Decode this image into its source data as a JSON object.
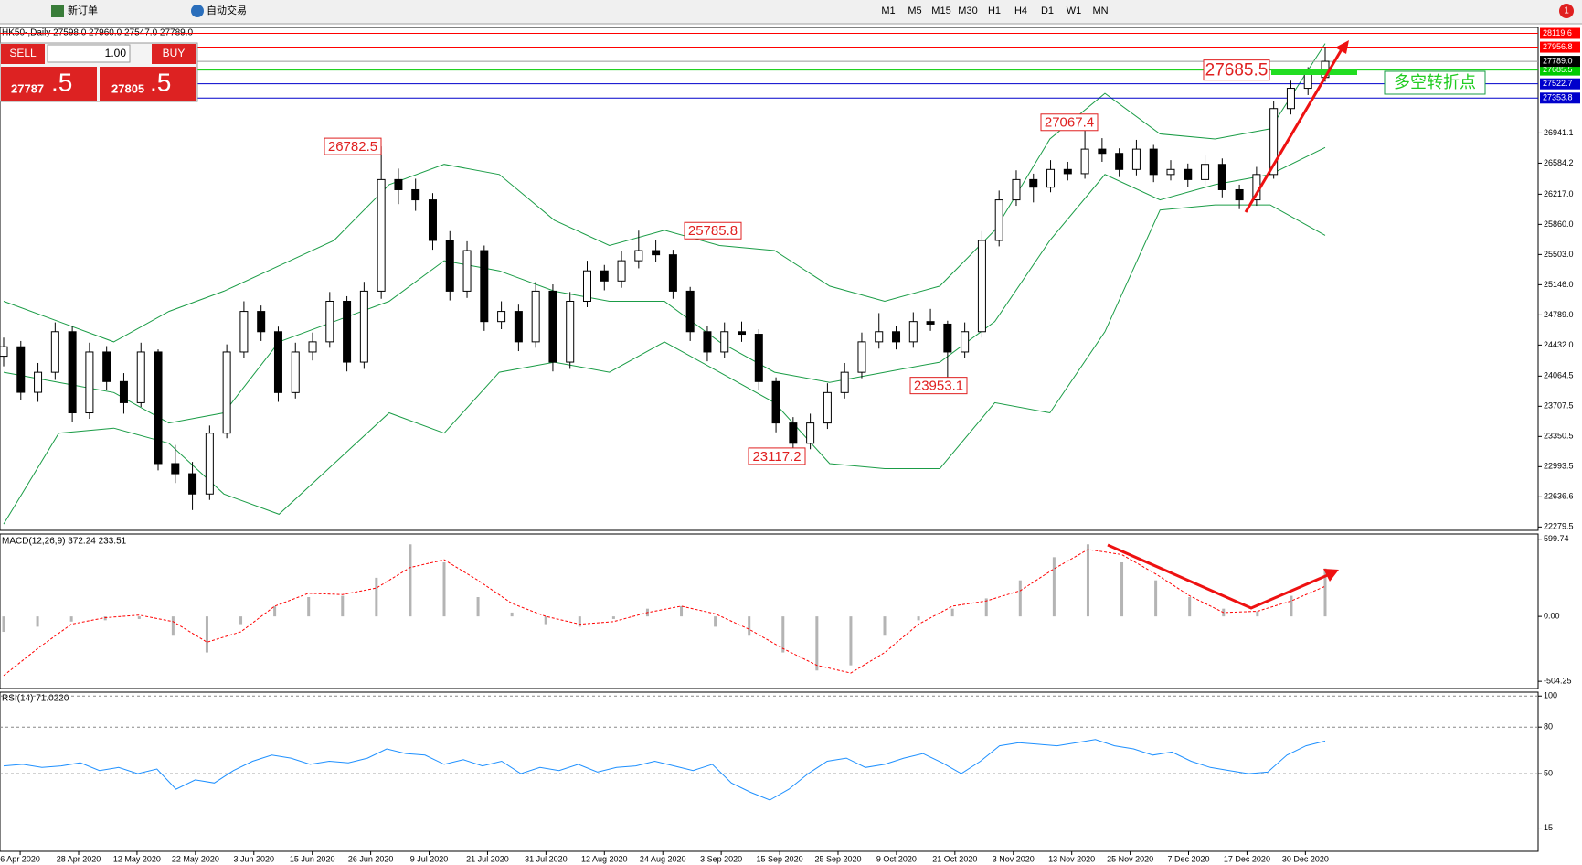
{
  "toolbar": {
    "buttons": [
      "新订单",
      "自动交易"
    ],
    "timeframes": [
      "M1",
      "M5",
      "M15",
      "M30",
      "H1",
      "H4",
      "D1",
      "W1",
      "MN"
    ],
    "notifications": "1"
  },
  "trade_panel": {
    "sell": "SELL",
    "buy": "BUY",
    "volume": "1.00",
    "bid_main": "27787",
    "bid_frac": ".5",
    "ask_main": "27805",
    "ask_frac": ".5"
  },
  "time_axis": {
    "labels": [
      "6 Apr 2020",
      "28 Apr 2020",
      "12 May 2020",
      "22 May 2020",
      "3 Jun 2020",
      "15 Jun 2020",
      "26 Jun 2020",
      "9 Jul 2020",
      "21 Jul 2020",
      "31 Jul 2020",
      "12 Aug 2020",
      "24 Aug 2020",
      "3 Sep 2020",
      "15 Sep 2020",
      "25 Sep 2020",
      "9 Oct 2020",
      "21 Oct 2020",
      "3 Nov 2020",
      "13 Nov 2020",
      "25 Nov 2020",
      "7 Dec 2020",
      "17 Dec 2020",
      "30 Dec 2020"
    ]
  },
  "chart_data": [
    {
      "type": "candlestick",
      "title": "HK50-,Daily  27598.0 27960.0 27547.0 27789.0",
      "candles": [
        [
          24300,
          24520,
          24180,
          24412
        ],
        [
          24412,
          24480,
          23780,
          23873
        ],
        [
          23873,
          24220,
          23760,
          24110
        ],
        [
          24110,
          24700,
          24020,
          24590
        ],
        [
          24590,
          24650,
          23520,
          23630
        ],
        [
          23630,
          24460,
          23560,
          24350
        ],
        [
          24350,
          24420,
          23900,
          24000
        ],
        [
          24000,
          24100,
          23620,
          23750
        ],
        [
          23750,
          24460,
          23700,
          24350
        ],
        [
          24350,
          24380,
          22950,
          23030
        ],
        [
          23030,
          23250,
          22800,
          22910
        ],
        [
          22910,
          23050,
          22480,
          22670
        ],
        [
          22670,
          23480,
          22600,
          23390
        ],
        [
          23390,
          24440,
          23330,
          24350
        ],
        [
          24350,
          24950,
          24280,
          24830
        ],
        [
          24830,
          24900,
          24480,
          24590
        ],
        [
          24590,
          24650,
          23760,
          23870
        ],
        [
          23870,
          24460,
          23800,
          24350
        ],
        [
          24350,
          24580,
          24250,
          24470
        ],
        [
          24470,
          25060,
          24400,
          24950
        ],
        [
          24950,
          25010,
          24120,
          24230
        ],
        [
          24230,
          25180,
          24150,
          25070
        ],
        [
          25070,
          26782.5,
          24980,
          26390
        ],
        [
          26390,
          26520,
          26100,
          26270
        ],
        [
          26270,
          26400,
          26020,
          26150
        ],
        [
          26150,
          26230,
          25560,
          25670
        ],
        [
          25670,
          25780,
          24960,
          25070
        ],
        [
          25070,
          25660,
          24990,
          25550
        ],
        [
          25550,
          25610,
          24600,
          24710
        ],
        [
          24710,
          24950,
          24620,
          24830
        ],
        [
          24830,
          24910,
          24360,
          24470
        ],
        [
          24470,
          25180,
          24400,
          25070
        ],
        [
          25070,
          25150,
          24120,
          24230
        ],
        [
          24230,
          25060,
          24150,
          24950
        ],
        [
          24950,
          25430,
          24880,
          25310
        ],
        [
          25310,
          25380,
          25080,
          25190
        ],
        [
          25190,
          25540,
          25110,
          25430
        ],
        [
          25430,
          25785.8,
          25340,
          25550
        ],
        [
          25550,
          25680,
          25420,
          25500
        ],
        [
          25500,
          25560,
          24980,
          25070
        ],
        [
          25070,
          25120,
          24480,
          24590
        ],
        [
          24590,
          24660,
          24240,
          24350
        ],
        [
          24350,
          24700,
          24280,
          24590
        ],
        [
          24590,
          24710,
          24470,
          24560
        ],
        [
          24560,
          24620,
          23900,
          24000
        ],
        [
          24000,
          24050,
          23400,
          23510
        ],
        [
          23510,
          23580,
          23117.2,
          23270
        ],
        [
          23270,
          23620,
          23200,
          23510
        ],
        [
          23510,
          23980,
          23440,
          23870
        ],
        [
          23870,
          24220,
          23800,
          24110
        ],
        [
          24110,
          24580,
          24040,
          24470
        ],
        [
          24470,
          24810,
          24390,
          24590
        ],
        [
          24590,
          24660,
          24380,
          24470
        ],
        [
          24470,
          24820,
          24400,
          24710
        ],
        [
          24710,
          24860,
          24600,
          24680
        ],
        [
          24680,
          24720,
          23953.1,
          24350
        ],
        [
          24350,
          24700,
          24280,
          24590
        ],
        [
          24590,
          25780,
          24520,
          25670
        ],
        [
          25670,
          26260,
          25600,
          26150
        ],
        [
          26150,
          26500,
          26080,
          26390
        ],
        [
          26390,
          26460,
          26120,
          26300
        ],
        [
          26300,
          26620,
          26240,
          26510
        ],
        [
          26510,
          26600,
          26380,
          26460
        ],
        [
          26460,
          27067.4,
          26400,
          26750
        ],
        [
          26750,
          26880,
          26600,
          26700
        ],
        [
          26700,
          26760,
          26420,
          26510
        ],
        [
          26510,
          26860,
          26440,
          26750
        ],
        [
          26750,
          26800,
          26360,
          26450
        ],
        [
          26450,
          26620,
          26380,
          26510
        ],
        [
          26510,
          26580,
          26300,
          26390
        ],
        [
          26390,
          26680,
          26320,
          26570
        ],
        [
          26570,
          26640,
          26180,
          26270
        ],
        [
          26270,
          26330,
          26040,
          26150
        ],
        [
          26150,
          26540,
          26080,
          26450
        ],
        [
          26450,
          27320,
          26400,
          27230
        ],
        [
          27230,
          27560,
          27160,
          27470
        ],
        [
          27470,
          27720,
          27390,
          27650
        ],
        [
          27598,
          27960,
          27547,
          27789
        ]
      ],
      "bands": {
        "color": "#1a9c46",
        "upper": [
          24950,
          24710,
          24470,
          24830,
          25070,
          25370,
          25670,
          26330,
          26570,
          26450,
          25910,
          25610,
          25790,
          25610,
          25550,
          25130,
          24950,
          25130,
          25790,
          26870,
          27410,
          26930,
          26870,
          26990,
          28000
        ],
        "middle": [
          24110,
          23990,
          23870,
          23510,
          23630,
          24470,
          24710,
          24950,
          25430,
          25310,
          25070,
          24950,
          24950,
          24470,
          24110,
          23990,
          24110,
          24230,
          24710,
          25670,
          26450,
          26150,
          26330,
          26450,
          26770
        ],
        "lower": [
          22315,
          23390,
          23450,
          23270,
          22670,
          22430,
          23030,
          23630,
          23390,
          24110,
          24230,
          24110,
          24470,
          24110,
          23750,
          23030,
          22970,
          22970,
          23750,
          23630,
          24590,
          26030,
          26090,
          26090,
          25730
        ]
      },
      "ylim": [
        22240,
        28190
      ],
      "yticks": [
        {
          "value": 26941.1,
          "label": "26941.1"
        },
        26584.2,
        {
          "value": 26217,
          "label": "26217.0"
        },
        {
          "value": 25860,
          "label": "25860.0"
        },
        {
          "value": 25503,
          "label": "25503.0"
        },
        {
          "value": 25146,
          "label": "25146.0"
        },
        {
          "value": 24789,
          "label": "24789.0"
        },
        {
          "value": 24432,
          "label": "24432.0"
        },
        24064.5,
        23707.5,
        23350.5,
        22993.5,
        22636.6,
        22279.5
      ],
      "hlines": [
        {
          "value": 28119.6,
          "color": "#ff0000"
        },
        {
          "value": 27956.8,
          "color": "#ff0000"
        },
        {
          "value": 27685.5,
          "color": "#00cc00"
        },
        {
          "value": 27522.7,
          "color": "#0000cc"
        },
        {
          "value": 27353.8,
          "color": "#0000cc"
        }
      ],
      "current_price": {
        "value": 27789,
        "label": "27789.0"
      },
      "price_labels": [
        {
          "value": 26782.5
        },
        {
          "value": 27067.4
        },
        {
          "value": 25785.8
        },
        {
          "value": 23953.1
        },
        {
          "value": 23117.2
        },
        {
          "value": 27685.5
        }
      ],
      "annotation": "多空转折点"
    },
    {
      "type": "macd",
      "title": "MACD(12,26,9) 372.24 233.51",
      "histogram": [
        -120,
        -80,
        -40,
        -30,
        -20,
        -150,
        -280,
        -60,
        80,
        150,
        160,
        300,
        560,
        420,
        150,
        30,
        -60,
        -80,
        -20,
        60,
        80,
        -80,
        -150,
        -280,
        -420,
        -380,
        -150,
        -30,
        60,
        140,
        280,
        460,
        560,
        420,
        280,
        150,
        60,
        40,
        160,
        372.24
      ],
      "histogram_color": "#b4b4b4",
      "signal": [
        -460,
        -250,
        -60,
        -10,
        10,
        -40,
        -200,
        -120,
        80,
        180,
        170,
        220,
        380,
        440,
        280,
        100,
        0,
        -60,
        -40,
        30,
        80,
        20,
        -100,
        -250,
        -380,
        -440,
        -280,
        -60,
        80,
        120,
        200,
        370,
        520,
        480,
        330,
        160,
        30,
        40,
        120,
        233.51
      ],
      "signal_color": "#ff0000",
      "ylim": [
        -560,
        640
      ],
      "yticks": [
        599.74,
        {
          "value": 0,
          "label": "0.00"
        },
        -504.25
      ]
    },
    {
      "type": "line",
      "title": "RSI(14) 71.0220",
      "values": [
        55,
        56,
        54,
        55,
        57,
        52,
        54,
        50,
        53,
        40,
        46,
        44,
        52,
        58,
        62,
        60,
        56,
        58,
        57,
        60,
        66,
        63,
        62,
        56,
        59,
        55,
        58,
        50,
        54,
        52,
        56,
        51,
        54,
        55,
        58,
        55,
        52,
        56,
        44,
        38,
        33,
        40,
        50,
        58,
        60,
        54,
        56,
        60,
        63,
        57,
        50,
        58,
        68,
        70,
        69,
        68,
        70,
        72,
        68,
        66,
        62,
        64,
        58,
        54,
        52,
        50,
        51,
        62,
        68,
        71.022
      ],
      "color": "#1e90ff",
      "ylim": [
        0,
        102.5
      ],
      "yticks": [
        100,
        80,
        50,
        15
      ],
      "grid": true
    }
  ]
}
